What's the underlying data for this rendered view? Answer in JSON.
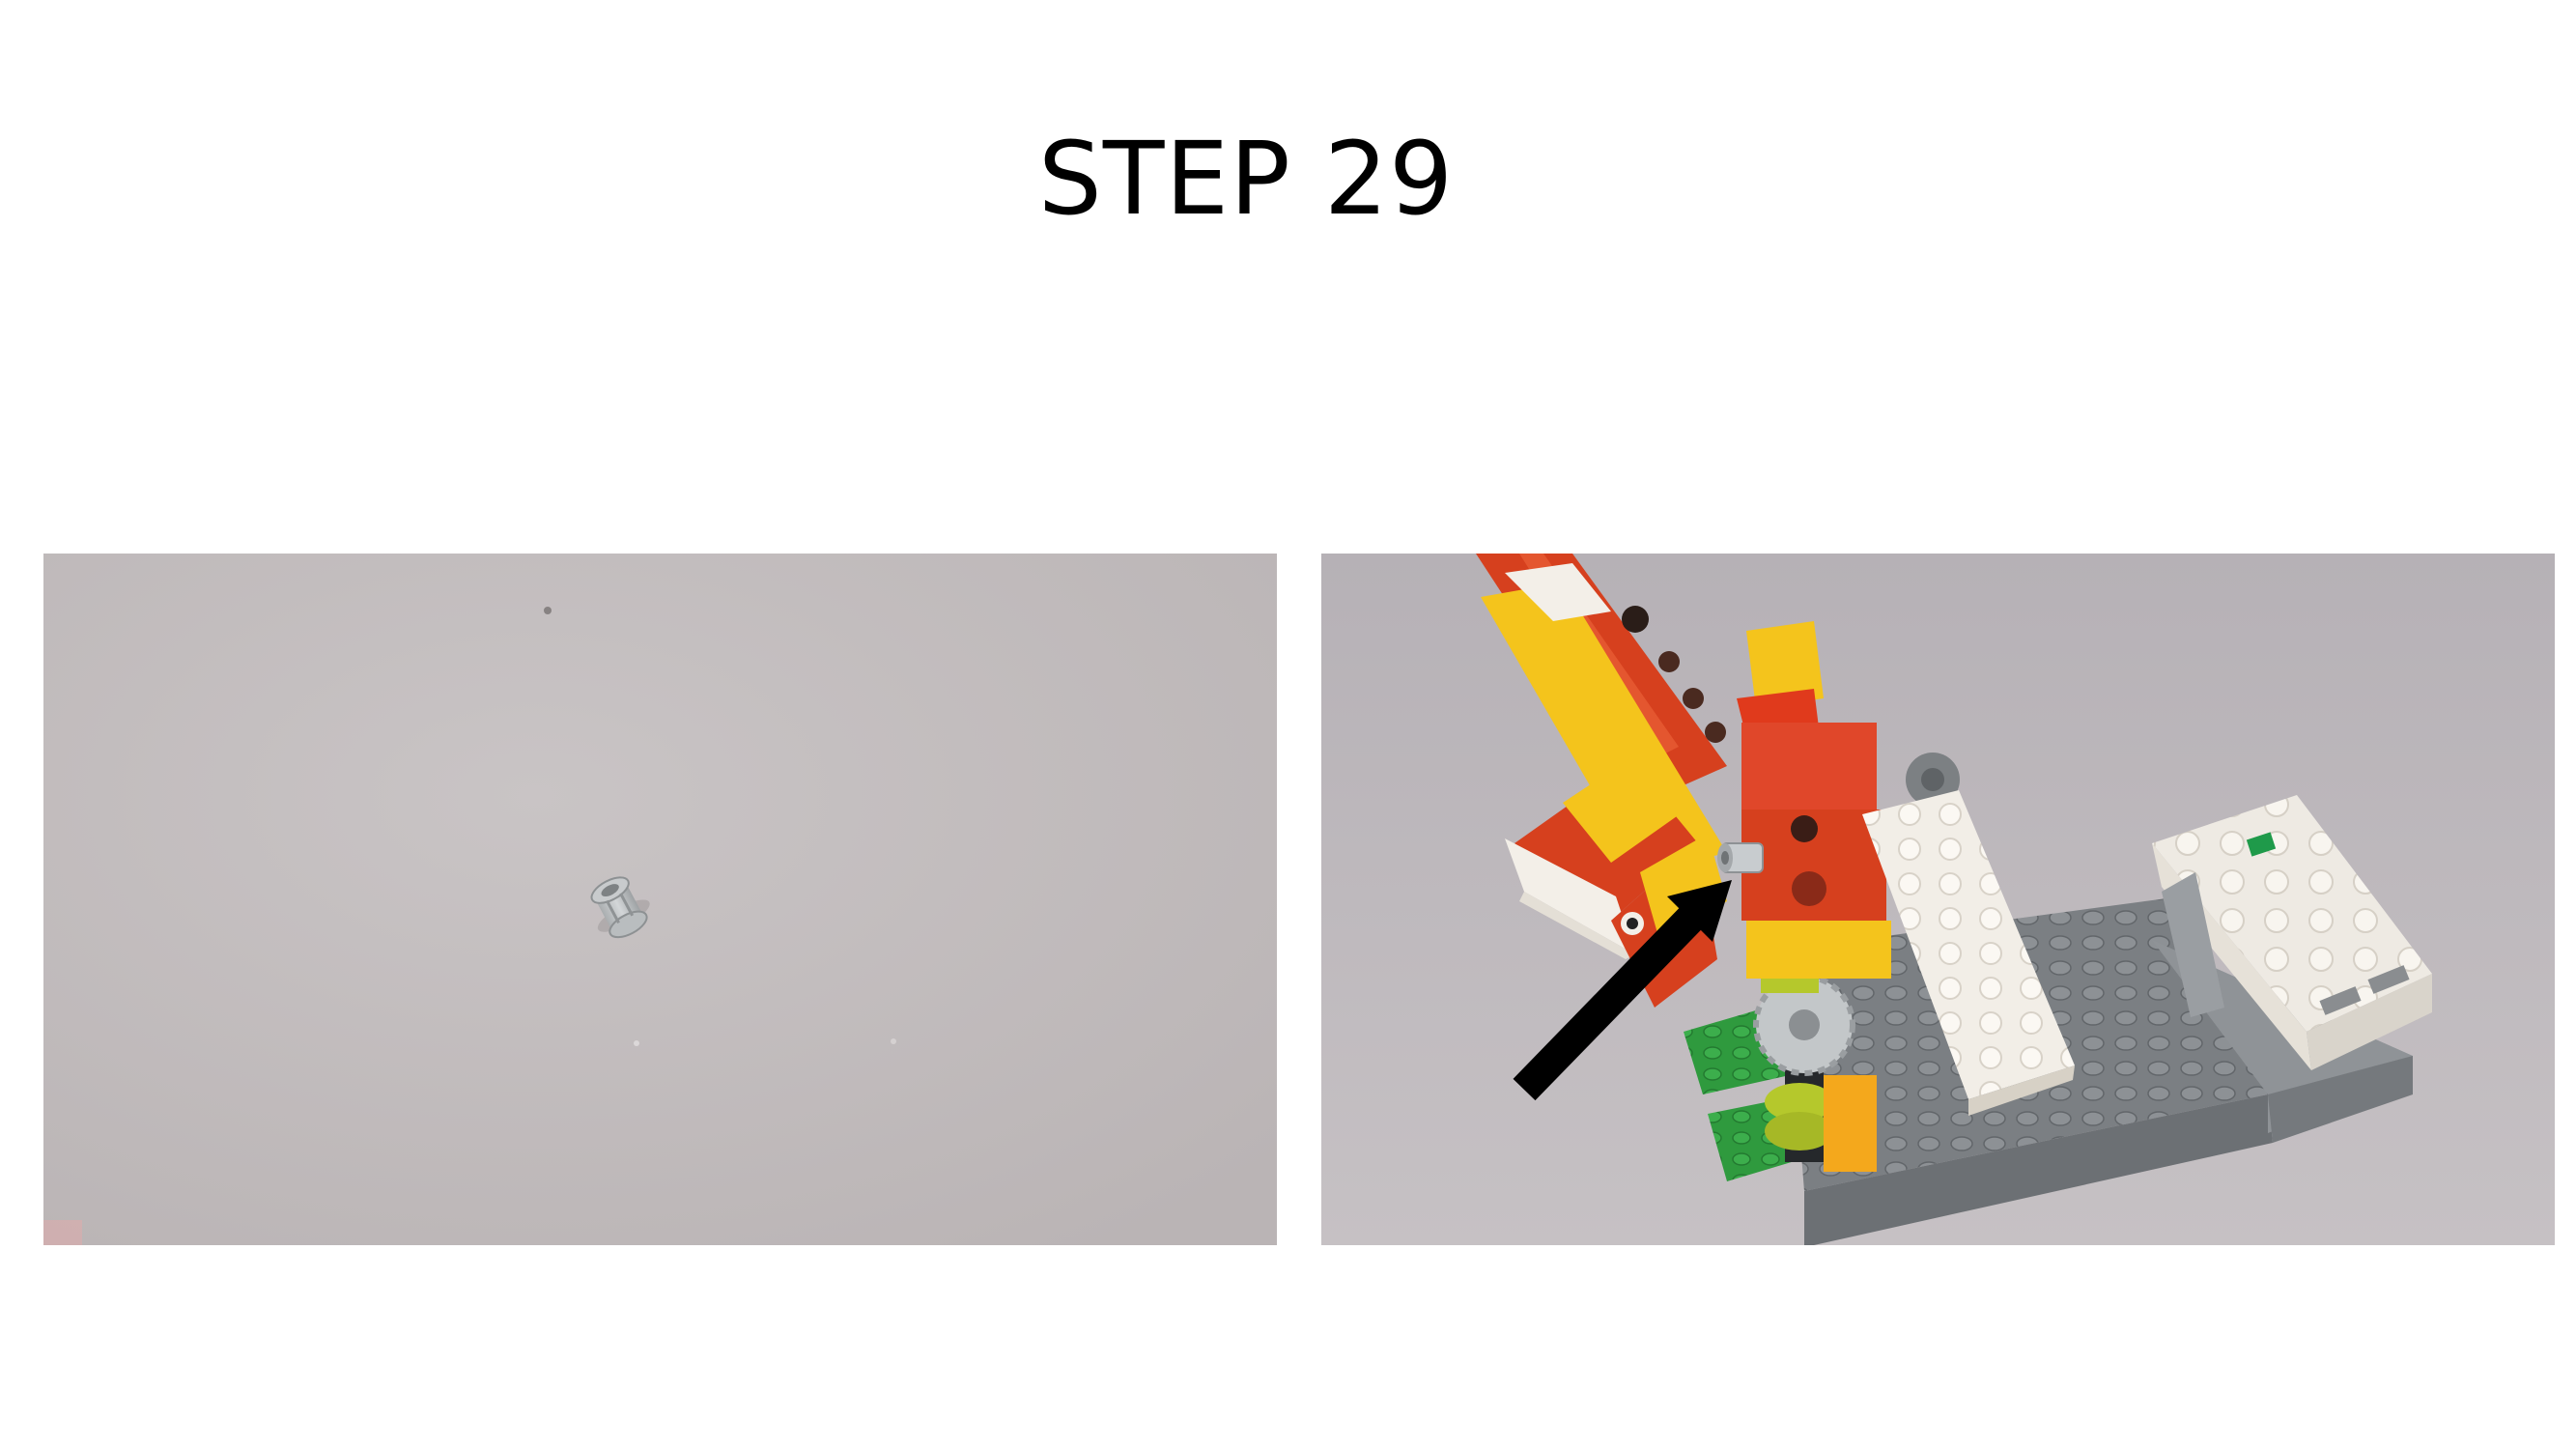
{
  "title": "STEP 29",
  "photos": [
    {
      "subject": "bush-part-photo",
      "background": "#c2bdbe"
    },
    {
      "subject": "model-assembly-photo",
      "background": "#bdb8bc"
    }
  ],
  "colors": {
    "lego_red": "#d6401e",
    "lego_yellow": "#f4c41c",
    "lego_white": "#f3efe8",
    "lego_dark_gray": "#7c8083",
    "lego_green": "#2f9a3e",
    "lego_lime": "#b5c82c",
    "lego_light_gray": "#c3c7c9",
    "arrow": "#000000"
  }
}
